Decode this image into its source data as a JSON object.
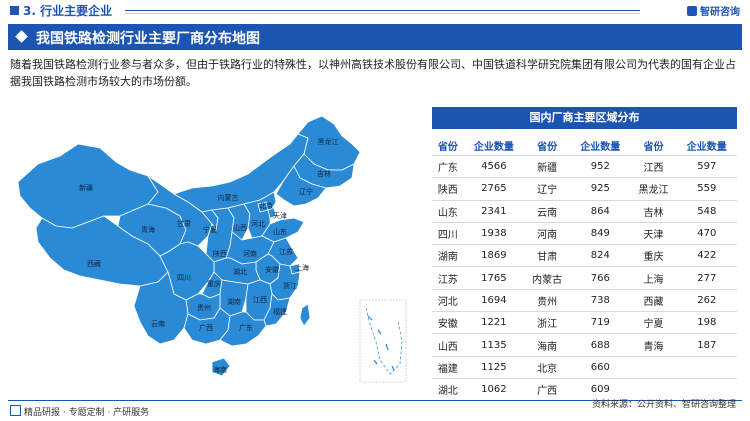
{
  "header": {
    "section_title": "3. 行业主要企业",
    "logo_text": "智研咨询"
  },
  "banner": {
    "title": "我国铁路检测行业主要厂商分布地图"
  },
  "description": "随着我国铁路检测行业参与者众多，但由于铁路行业的特殊性，以神州高铁技术股份有限公司、中国铁道科学研究院集团有限公司为代表的国有企业占据我国铁路检测市场较大的市场份额。",
  "map": {
    "fill_color": "#2a8ad6",
    "stroke_color": "#ffffff",
    "labels": [
      "新疆",
      "西藏",
      "青海",
      "甘肃",
      "宁夏",
      "内蒙古",
      "黑龙江",
      "吉林",
      "辽宁",
      "北京",
      "天津",
      "河北",
      "山西",
      "陕西",
      "山东",
      "河南",
      "江苏",
      "安徽",
      "上海",
      "四川",
      "重庆",
      "湖北",
      "浙江",
      "贵州",
      "湖南",
      "江西",
      "云南",
      "广西",
      "广东",
      "福建",
      "海南"
    ]
  },
  "panel": {
    "title": "国内厂商主要区域分布",
    "headers": [
      "省份",
      "企业数量",
      "省份",
      "企业数量",
      "省份",
      "企业数量"
    ],
    "rows": [
      [
        "广东",
        "4566",
        "新疆",
        "952",
        "江西",
        "597"
      ],
      [
        "陕西",
        "2765",
        "辽宁",
        "925",
        "黑龙江",
        "559"
      ],
      [
        "山东",
        "2341",
        "云南",
        "864",
        "吉林",
        "548"
      ],
      [
        "四川",
        "1938",
        "河南",
        "849",
        "天津",
        "470"
      ],
      [
        "湖南",
        "1869",
        "甘肃",
        "824",
        "重庆",
        "422"
      ],
      [
        "江苏",
        "1765",
        "内蒙古",
        "766",
        "上海",
        "277"
      ],
      [
        "河北",
        "1694",
        "贵州",
        "738",
        "西藏",
        "262"
      ],
      [
        "安徽",
        "1221",
        "浙江",
        "719",
        "宁夏",
        "198"
      ],
      [
        "山西",
        "1135",
        "海南",
        "688",
        "青海",
        "187"
      ],
      [
        "福建",
        "1125",
        "北京",
        "660",
        "",
        ""
      ],
      [
        "湖北",
        "1062",
        "广西",
        "609",
        "",
        ""
      ]
    ]
  },
  "footer": {
    "left_text": "精品研报 · 专题定制 · 产研服务",
    "source": "资料来源：公开资料、智研咨询整理"
  }
}
